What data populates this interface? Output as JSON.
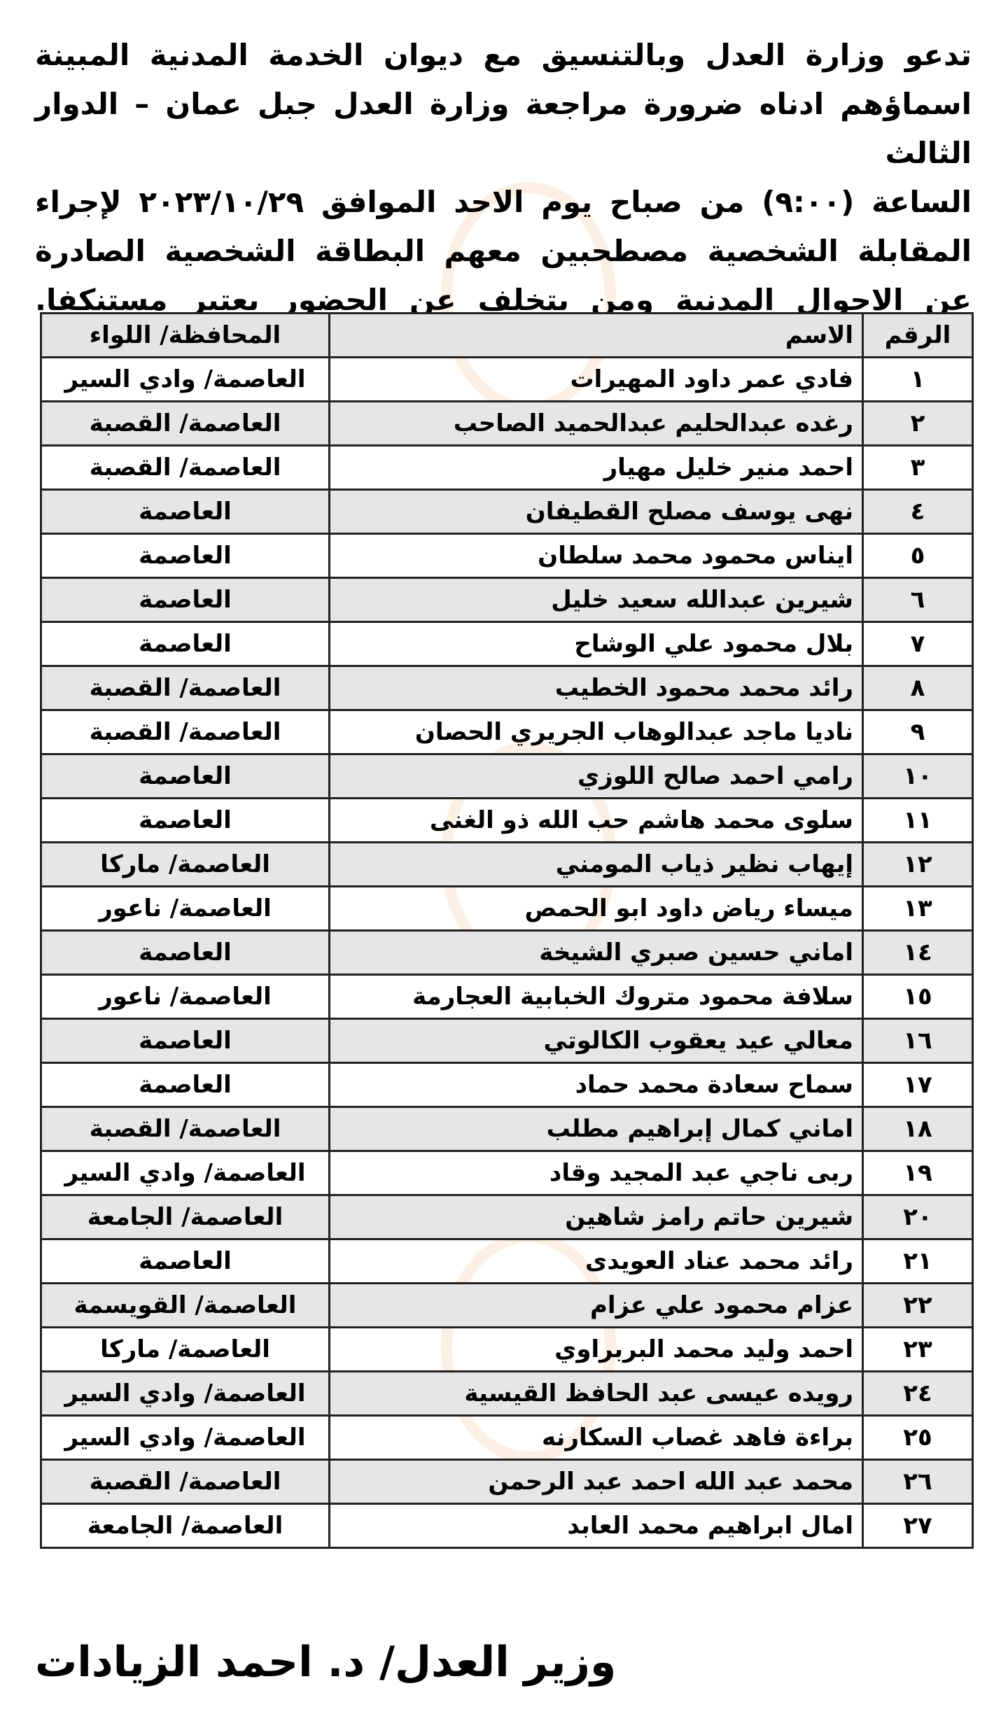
{
  "intro_lines": [
    "تدعو وزارة العدل وبالتنسيق مع ديوان الخدمة المدنية المبينة",
    "اسماؤهم ادناه ضرورة مراجعة وزارة العدل جبل عمان – الدوار الثالث",
    "الساعة (٩:٠٠) من صباح يوم الاحد الموافق ٢٠٢٣/١٠/٢٩ لإجراء",
    "المقابلة الشخصية مصطحبين معهم البطاقة الشخصية الصادرة",
    "عن الاحوال المدنية ومن يتخلف عن الحضور يعتبر مستنكفا."
  ],
  "table": {
    "headers": {
      "number": "الرقم",
      "name": "الاسم",
      "governorate": "المحافظة/ اللواء"
    },
    "rows": [
      {
        "n": "١",
        "name": "فادي عمر داود المهيرات",
        "gov": "العاصمة/ وادي السير"
      },
      {
        "n": "٢",
        "name": "رغده عبدالحليم عبدالحميد الصاحب",
        "gov": "العاصمة/ القصبة"
      },
      {
        "n": "٣",
        "name": "احمد منير خليل مهيار",
        "gov": "العاصمة/ القصبة"
      },
      {
        "n": "٤",
        "name": "نهى يوسف مصلح القطيفان",
        "gov": "العاصمة"
      },
      {
        "n": "٥",
        "name": "ايناس محمود محمد سلطان",
        "gov": "العاصمة"
      },
      {
        "n": "٦",
        "name": "شيرين عبدالله سعيد خليل",
        "gov": "العاصمة"
      },
      {
        "n": "٧",
        "name": "بلال محمود علي الوشاح",
        "gov": "العاصمة"
      },
      {
        "n": "٨",
        "name": "رائد محمد محمود الخطيب",
        "gov": "العاصمة/ القصبة"
      },
      {
        "n": "٩",
        "name": "ناديا ماجد عبدالوهاب الجريري الحصان",
        "gov": "العاصمة/ القصبة"
      },
      {
        "n": "١٠",
        "name": "رامي احمد صالح اللوزي",
        "gov": "العاصمة"
      },
      {
        "n": "١١",
        "name": "سلوى محمد هاشم حب الله ذو الغنى",
        "gov": "العاصمة"
      },
      {
        "n": "١٢",
        "name": "إيهاب نظير ذياب المومني",
        "gov": "العاصمة/ ماركا"
      },
      {
        "n": "١٣",
        "name": "ميساء رياض داود ابو الحمص",
        "gov": "العاصمة/ ناعور"
      },
      {
        "n": "١٤",
        "name": "اماني حسين صبري الشيخة",
        "gov": "العاصمة"
      },
      {
        "n": "١٥",
        "name": "سلافة محمود متروك الخبابية العجارمة",
        "gov": "العاصمة/ ناعور"
      },
      {
        "n": "١٦",
        "name": "معالي عيد يعقوب الكالوتي",
        "gov": "العاصمة"
      },
      {
        "n": "١٧",
        "name": "سماح سعادة محمد حماد",
        "gov": "العاصمة"
      },
      {
        "n": "١٨",
        "name": "اماني كمال إبراهيم مطلب",
        "gov": "العاصمة/ القصبة"
      },
      {
        "n": "١٩",
        "name": "ربى ناجي عبد المجيد وقاد",
        "gov": "العاصمة/ وادي السير"
      },
      {
        "n": "٢٠",
        "name": "شيرين حاتم رامز شاهين",
        "gov": "العاصمة/ الجامعة"
      },
      {
        "n": "٢١",
        "name": "رائد محمد عناد العويدى",
        "gov": "العاصمة"
      },
      {
        "n": "٢٢",
        "name": "عزام محمود علي عزام",
        "gov": "العاصمة/ القويسمة"
      },
      {
        "n": "٢٣",
        "name": "احمد وليد محمد البربراوي",
        "gov": "العاصمة/ ماركا"
      },
      {
        "n": "٢٤",
        "name": "رويده عيسى عبد الحافظ القيسية",
        "gov": "العاصمة/ وادي السير"
      },
      {
        "n": "٢٥",
        "name": "براءة فاهد غصاب السكارنه",
        "gov": "العاصمة/ وادي السير"
      },
      {
        "n": "٢٦",
        "name": "محمد عبد الله احمد عبد الرحمن",
        "gov": "العاصمة/ القصبة"
      },
      {
        "n": "٢٧",
        "name": "امال ابراهيم محمد العابد",
        "gov": "العاصمة/ الجامعة"
      }
    ]
  },
  "signature": "وزير العدل/ د. احمد الزيادات",
  "colors": {
    "row_alt": "#e6e6e8",
    "header_bg": "#e4e4e4",
    "watermark": "#f0aa6e"
  }
}
